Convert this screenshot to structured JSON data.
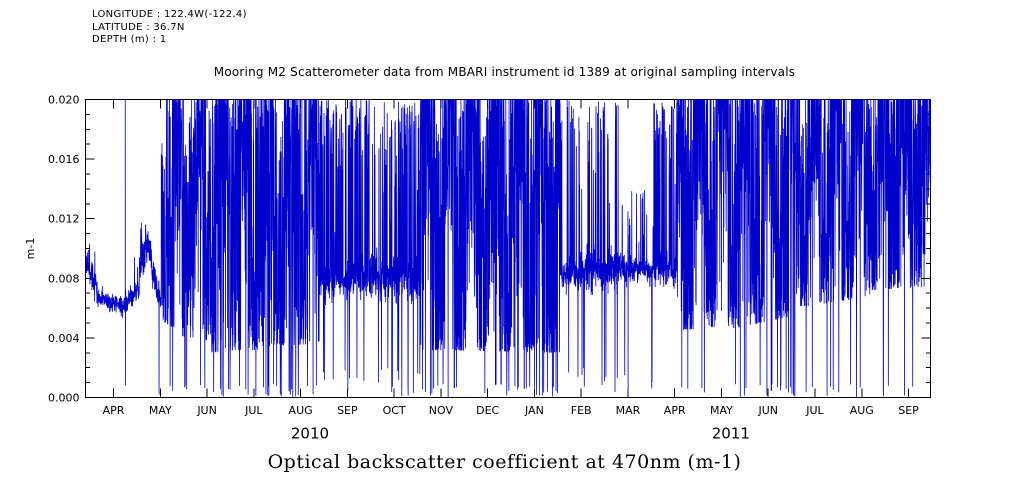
{
  "header": {
    "longitude": "LONGITUDE : 122.4W(-122.4)",
    "latitude": "LATITUDE : 36.7N",
    "depth": "DEPTH (m) : 1"
  },
  "caption": "Optical backscatter coefficient at 470nm (m-1)",
  "chart_data": {
    "type": "line",
    "title": "Mooring M2 Scatterometer data from MBARI instrument id 1389 at original sampling intervals",
    "ylabel": "m-1",
    "xlabel": "",
    "ylim": [
      0.0,
      0.02
    ],
    "clip_value": 0.02,
    "y_ticks": [
      "0.000",
      "0.004",
      "0.008",
      "0.012",
      "0.016",
      "0.020"
    ],
    "x_ticks": [
      "APR",
      "MAY",
      "JUN",
      "JUL",
      "AUG",
      "SEP",
      "OCT",
      "NOV",
      "DEC",
      "JAN",
      "FEB",
      "MAR",
      "APR",
      "MAY",
      "JUN",
      "JUL",
      "AUG",
      "SEP"
    ],
    "year_labels": [
      {
        "label": "2010",
        "t_center": 4.2
      },
      {
        "label": "2011",
        "t_center": 13.2
      }
    ],
    "series_color": "#0000cc",
    "axis_color": "#000000",
    "legend": null,
    "grid": false,
    "t_range": [
      -0.6,
      17.47
    ],
    "samples": 5200,
    "seed": 42,
    "description": "High-frequency optical backscatter time series (APR 2010 - SEP 2011), values clipped at 0.020 m-1. Quiet baseline ~0.006-0.009 m-1 during APR-MAY 2010, SEP-OCT 2010 and FEB-MAR 2011; saturated spiky episodes reaching the 0.020 clip during JUN-AUG 2010, NOV 2010-JAN 2011 and APR-SEP 2011, with occasional dropouts to 0.000.",
    "envelope_segments": [
      {
        "t0": -0.6,
        "t1": -0.35,
        "mode": "band",
        "base0": 0.0093,
        "base1": 0.0072,
        "noise": 0.00045,
        "spike_prob": 0.04,
        "spike_max": 0.0105,
        "drop_prob": 0.0
      },
      {
        "t0": -0.35,
        "t1": 0.2,
        "mode": "band",
        "base0": 0.0067,
        "base1": 0.0061,
        "noise": 0.0003,
        "spike_prob": 0.02,
        "spike_max": 0.008,
        "drop_prob": 0.0
      },
      {
        "t0": 0.2,
        "t1": 0.55,
        "mode": "band",
        "base0": 0.0062,
        "base1": 0.0073,
        "noise": 0.00035,
        "spike_prob": 0.04,
        "spike_max": 0.0095,
        "drop_prob": 0.0
      },
      {
        "t0": 0.55,
        "t1": 0.72,
        "mode": "band",
        "base0": 0.0085,
        "base1": 0.0104,
        "noise": 0.0006,
        "spike_prob": 0.05,
        "spike_max": 0.0118,
        "drop_prob": 0.0
      },
      {
        "t0": 0.72,
        "t1": 0.9,
        "mode": "band",
        "base0": 0.0104,
        "base1": 0.0076,
        "noise": 0.0005,
        "spike_prob": 0.04,
        "spike_max": 0.011,
        "drop_prob": 0.0
      },
      {
        "t0": 0.9,
        "t1": 1.02,
        "mode": "band",
        "base0": 0.0073,
        "base1": 0.0068,
        "noise": 0.0004,
        "spike_prob": 0.02,
        "spike_max": 0.009,
        "drop_prob": 0.005
      },
      {
        "t0": 1.02,
        "t1": 1.3,
        "mode": "dense",
        "low0": 0.0052,
        "low1": 0.0046,
        "pow": 0.6,
        "top_prob": 0.22,
        "zero_prob": 0.02
      },
      {
        "t0": 1.3,
        "t1": 2.1,
        "mode": "dense",
        "low0": 0.0042,
        "low1": 0.0038,
        "pow": 0.52,
        "top_prob": 0.3,
        "zero_prob": 0.03
      },
      {
        "t0": 2.1,
        "t1": 3.1,
        "mode": "dense",
        "low0": 0.003,
        "low1": 0.0032,
        "pow": 0.5,
        "top_prob": 0.34,
        "zero_prob": 0.045
      },
      {
        "t0": 3.1,
        "t1": 4.4,
        "mode": "dense",
        "low0": 0.0034,
        "low1": 0.0036,
        "pow": 0.5,
        "top_prob": 0.34,
        "zero_prob": 0.05
      },
      {
        "t0": 4.4,
        "t1": 5.15,
        "mode": "band",
        "base0": 0.0078,
        "base1": 0.008,
        "noise": 0.0006,
        "spike_prob": 0.3,
        "spike_max": 0.02,
        "drop_prob": 0.02
      },
      {
        "t0": 5.15,
        "t1": 6.55,
        "mode": "band",
        "base0": 0.0082,
        "base1": 0.0079,
        "noise": 0.00075,
        "spike_prob": 0.22,
        "spike_max": 0.02,
        "drop_prob": 0.025
      },
      {
        "t0": 6.55,
        "t1": 9.55,
        "mode": "dense",
        "low0": 0.0032,
        "low1": 0.003,
        "pow": 0.46,
        "top_prob": 0.4,
        "zero_prob": 0.05
      },
      {
        "t0": 9.55,
        "t1": 9.95,
        "mode": "band",
        "base0": 0.0082,
        "base1": 0.0082,
        "noise": 0.0005,
        "spike_prob": 0.1,
        "spike_max": 0.02,
        "drop_prob": 0.01
      },
      {
        "t0": 9.95,
        "t1": 10.8,
        "mode": "band",
        "base0": 0.0085,
        "base1": 0.0085,
        "noise": 0.0007,
        "spike_prob": 0.2,
        "spike_max": 0.02,
        "drop_prob": 0.02
      },
      {
        "t0": 10.8,
        "t1": 11.55,
        "mode": "band",
        "base0": 0.0086,
        "base1": 0.0086,
        "noise": 0.0005,
        "spike_prob": 0.05,
        "spike_max": 0.014,
        "drop_prob": 0.008
      },
      {
        "t0": 11.55,
        "t1": 12.05,
        "mode": "band",
        "base0": 0.0085,
        "base1": 0.0085,
        "noise": 0.0006,
        "spike_prob": 0.28,
        "spike_max": 0.02,
        "drop_prob": 0.02
      },
      {
        "t0": 12.05,
        "t1": 13.2,
        "mode": "dense",
        "low0": 0.0045,
        "low1": 0.0048,
        "pow": 0.45,
        "top_prob": 0.45,
        "zero_prob": 0.03
      },
      {
        "t0": 13.2,
        "t1": 14.6,
        "mode": "dense",
        "low0": 0.0046,
        "low1": 0.0055,
        "pow": 0.42,
        "top_prob": 0.5,
        "zero_prob": 0.04
      },
      {
        "t0": 14.6,
        "t1": 16.2,
        "mode": "dense",
        "low0": 0.006,
        "low1": 0.0068,
        "pow": 0.45,
        "top_prob": 0.5,
        "zero_prob": 0.025
      },
      {
        "t0": 16.2,
        "t1": 17.47,
        "mode": "dense",
        "low0": 0.0072,
        "low1": 0.0074,
        "pow": 0.5,
        "top_prob": 0.45,
        "zero_prob": 0.02
      }
    ],
    "events": [
      {
        "t": 0.25,
        "hi": 0.02,
        "lo": 0.0008
      },
      {
        "t": 0.97,
        "hi": 0.0078,
        "lo": 0.0002
      },
      {
        "t": 9.7,
        "hi": 0.02,
        "lo": 0.008
      },
      {
        "t": 11.0,
        "hi": 0.0125,
        "lo": 0.0002
      }
    ]
  }
}
